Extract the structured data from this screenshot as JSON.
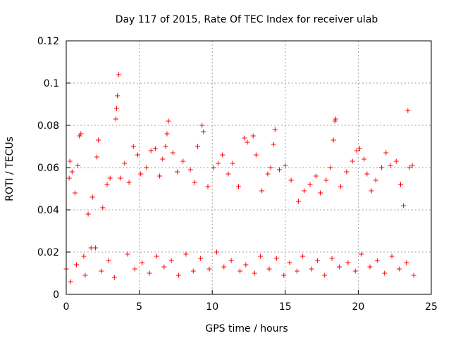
{
  "chart_data": {
    "type": "scatter",
    "title": "Day 117 of 2015, Rate Of TEC Index for receiver ulab",
    "xlabel": "GPS time / hours",
    "ylabel": "ROTI / TECUs",
    "xlim": [
      0,
      25
    ],
    "ylim": [
      0,
      0.12
    ],
    "x_ticks": [
      0,
      5,
      10,
      15,
      20,
      25
    ],
    "y_ticks": [
      0,
      0.02,
      0.04,
      0.06,
      0.08,
      0.1,
      0.12
    ],
    "x_tick_labels": [
      "0",
      "5",
      "10",
      "15",
      "20",
      "25"
    ],
    "y_tick_labels": [
      "0",
      "0.02",
      "0.04",
      "0.06",
      "0.08",
      "0.1",
      "0.12"
    ],
    "grid": true,
    "marker": "+",
    "marker_color": "#ff0000",
    "series": [
      {
        "values": [
          [
            0.0,
            0.012
          ],
          [
            0.2,
            0.055
          ],
          [
            0.25,
            0.063
          ],
          [
            0.4,
            0.058
          ],
          [
            0.6,
            0.048
          ],
          [
            0.8,
            0.061
          ],
          [
            0.9,
            0.075
          ],
          [
            1.0,
            0.076
          ],
          [
            1.2,
            0.018
          ],
          [
            1.5,
            0.038
          ],
          [
            1.8,
            0.046
          ],
          [
            2.0,
            0.022
          ],
          [
            2.1,
            0.065
          ],
          [
            2.2,
            0.073
          ],
          [
            2.5,
            0.041
          ],
          [
            2.8,
            0.052
          ],
          [
            3.0,
            0.055
          ],
          [
            3.4,
            0.083
          ],
          [
            3.45,
            0.088
          ],
          [
            3.5,
            0.094
          ],
          [
            3.6,
            0.104
          ],
          [
            3.7,
            0.055
          ],
          [
            4.0,
            0.062
          ],
          [
            4.3,
            0.053
          ],
          [
            4.6,
            0.07
          ],
          [
            4.9,
            0.066
          ],
          [
            5.1,
            0.057
          ],
          [
            5.5,
            0.06
          ],
          [
            5.8,
            0.068
          ],
          [
            6.1,
            0.069
          ],
          [
            6.4,
            0.056
          ],
          [
            6.6,
            0.064
          ],
          [
            6.8,
            0.07
          ],
          [
            6.9,
            0.076
          ],
          [
            7.0,
            0.082
          ],
          [
            7.3,
            0.067
          ],
          [
            7.6,
            0.058
          ],
          [
            8.0,
            0.063
          ],
          [
            8.5,
            0.059
          ],
          [
            8.8,
            0.053
          ],
          [
            9.0,
            0.07
          ],
          [
            9.3,
            0.08
          ],
          [
            9.4,
            0.077
          ],
          [
            9.7,
            0.051
          ],
          [
            10.1,
            0.06
          ],
          [
            10.4,
            0.062
          ],
          [
            10.7,
            0.066
          ],
          [
            11.1,
            0.057
          ],
          [
            11.4,
            0.062
          ],
          [
            11.8,
            0.051
          ],
          [
            12.2,
            0.074
          ],
          [
            12.4,
            0.072
          ],
          [
            12.8,
            0.075
          ],
          [
            13.0,
            0.066
          ],
          [
            13.4,
            0.049
          ],
          [
            13.8,
            0.057
          ],
          [
            14.0,
            0.06
          ],
          [
            14.2,
            0.071
          ],
          [
            14.3,
            0.078
          ],
          [
            14.6,
            0.059
          ],
          [
            15.0,
            0.061
          ],
          [
            15.4,
            0.054
          ],
          [
            15.9,
            0.044
          ],
          [
            16.3,
            0.049
          ],
          [
            16.7,
            0.052
          ],
          [
            17.1,
            0.056
          ],
          [
            17.4,
            0.048
          ],
          [
            17.8,
            0.054
          ],
          [
            18.1,
            0.06
          ],
          [
            18.3,
            0.073
          ],
          [
            18.4,
            0.082
          ],
          [
            18.45,
            0.083
          ],
          [
            18.8,
            0.051
          ],
          [
            19.2,
            0.058
          ],
          [
            19.6,
            0.063
          ],
          [
            19.9,
            0.068
          ],
          [
            20.1,
            0.069
          ],
          [
            20.4,
            0.064
          ],
          [
            20.6,
            0.057
          ],
          [
            20.9,
            0.049
          ],
          [
            21.2,
            0.054
          ],
          [
            21.6,
            0.06
          ],
          [
            21.9,
            0.067
          ],
          [
            22.2,
            0.061
          ],
          [
            22.6,
            0.063
          ],
          [
            22.9,
            0.052
          ],
          [
            23.1,
            0.042
          ],
          [
            23.4,
            0.087
          ],
          [
            23.5,
            0.06
          ],
          [
            23.7,
            0.061
          ],
          [
            0.3,
            0.006
          ],
          [
            0.7,
            0.014
          ],
          [
            1.3,
            0.009
          ],
          [
            1.7,
            0.022
          ],
          [
            2.4,
            0.011
          ],
          [
            2.9,
            0.016
          ],
          [
            3.3,
            0.008
          ],
          [
            4.2,
            0.019
          ],
          [
            4.7,
            0.012
          ],
          [
            5.2,
            0.015
          ],
          [
            5.7,
            0.01
          ],
          [
            6.2,
            0.018
          ],
          [
            6.7,
            0.013
          ],
          [
            7.2,
            0.016
          ],
          [
            7.7,
            0.009
          ],
          [
            8.2,
            0.019
          ],
          [
            8.7,
            0.011
          ],
          [
            9.2,
            0.017
          ],
          [
            9.8,
            0.012
          ],
          [
            10.3,
            0.02
          ],
          [
            10.8,
            0.013
          ],
          [
            11.3,
            0.016
          ],
          [
            11.9,
            0.011
          ],
          [
            12.3,
            0.014
          ],
          [
            12.9,
            0.01
          ],
          [
            13.3,
            0.018
          ],
          [
            13.9,
            0.012
          ],
          [
            14.4,
            0.017
          ],
          [
            14.9,
            0.009
          ],
          [
            15.3,
            0.015
          ],
          [
            15.8,
            0.011
          ],
          [
            16.2,
            0.018
          ],
          [
            16.8,
            0.012
          ],
          [
            17.2,
            0.016
          ],
          [
            17.7,
            0.009
          ],
          [
            18.2,
            0.017
          ],
          [
            18.7,
            0.013
          ],
          [
            19.3,
            0.015
          ],
          [
            19.8,
            0.011
          ],
          [
            20.2,
            0.019
          ],
          [
            20.8,
            0.013
          ],
          [
            21.3,
            0.016
          ],
          [
            21.8,
            0.01
          ],
          [
            22.3,
            0.018
          ],
          [
            22.8,
            0.012
          ],
          [
            23.3,
            0.015
          ],
          [
            23.8,
            0.009
          ]
        ]
      }
    ]
  }
}
